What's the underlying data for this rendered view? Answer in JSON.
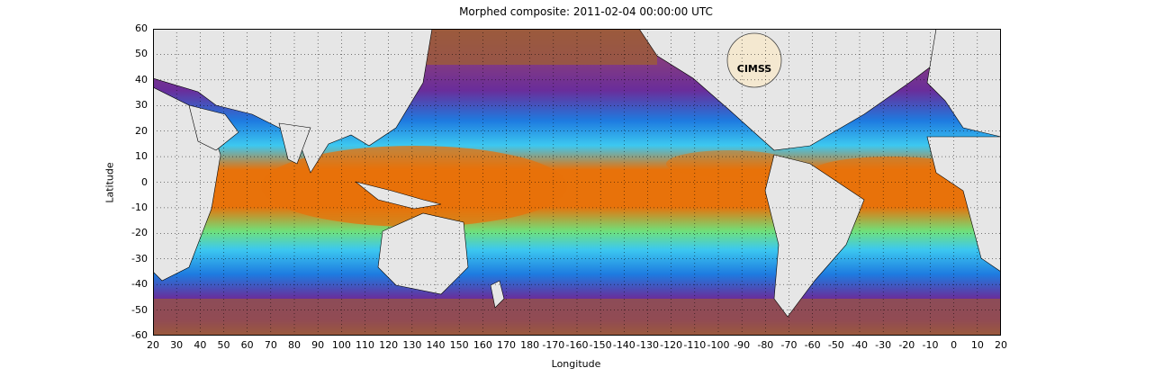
{
  "title": "Morphed composite: 2011-02-04 00:00:00 UTC",
  "xlabel": "Longitude",
  "ylabel": "Latitude",
  "x_ticks": [
    "20",
    "30",
    "40",
    "50",
    "60",
    "70",
    "80",
    "90",
    "100",
    "110",
    "120",
    "130",
    "140",
    "150",
    "160",
    "170",
    "180",
    "-170",
    "-160",
    "-150",
    "-140",
    "-130",
    "-120",
    "-110",
    "-100",
    "-90",
    "-80",
    "-70",
    "-60",
    "-50",
    "-40",
    "-30",
    "-20",
    "-10",
    "0",
    "10",
    "20"
  ],
  "y_ticks": [
    "60",
    "50",
    "40",
    "30",
    "20",
    "10",
    "0",
    "-10",
    "-20",
    "-30",
    "-40",
    "-50",
    "-60"
  ],
  "logo_text": "CIMSS",
  "colors": {
    "dry": "#9b5a3c",
    "purple": "#7a2a8a",
    "blue": "#1e7be0",
    "cyan": "#3cc8f0",
    "green": "#6fe07a",
    "orange": "#e8720a",
    "land": "#e6e6e6",
    "grid": "#000000"
  },
  "legend_note": ""
}
